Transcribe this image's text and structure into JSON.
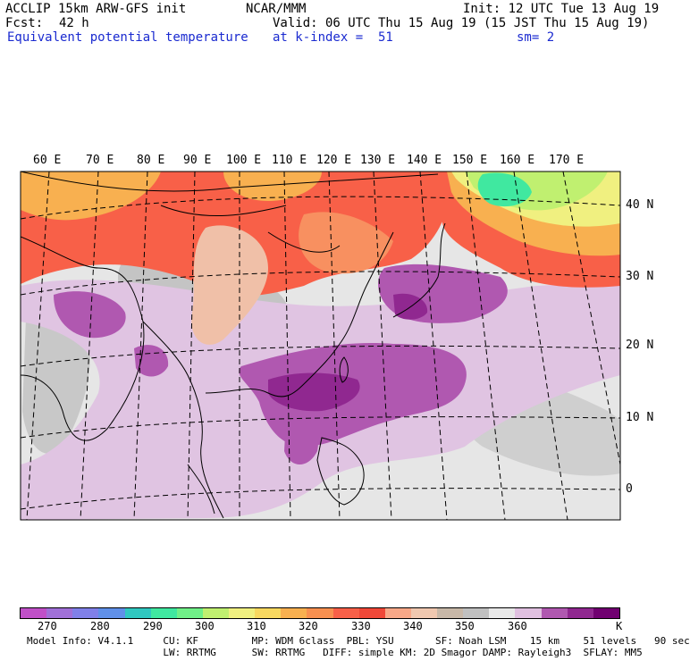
{
  "header": {
    "model_title": "ACCLIP 15km ARW-GFS init",
    "org": "NCAR/MMM",
    "init_time": "Init: 12 UTC Tue 13 Aug 19",
    "fcst_label": "Fcst:",
    "fcst_value": "42 h",
    "valid_time": "Valid: 06 UTC Thu 15 Aug 19 (15 JST Thu 15 Aug 19)",
    "field_name": "Equivalent potential temperature",
    "level": "at k-index =  51",
    "smoothing": "sm= 2"
  },
  "map": {
    "lon_labels": [
      "60 E",
      "70 E",
      "80 E",
      "90 E",
      "100 E",
      "110 E",
      "120 E",
      "130 E",
      "140 E",
      "150 E",
      "160 E",
      "170 E"
    ],
    "lat_labels": [
      "40 N",
      "30 N",
      "20 N",
      "10 N",
      "0"
    ]
  },
  "colorbar": {
    "colors": [
      "#c050c8",
      "#a070d8",
      "#8080e8",
      "#6090e8",
      "#30c8c0",
      "#40e8a0",
      "#70f088",
      "#c0f070",
      "#f0f080",
      "#f8d860",
      "#f8b050",
      "#f89050",
      "#f86048",
      "#f04838",
      "#f8a888",
      "#f0c8b0",
      "#c8b8a8",
      "#c0c0c0",
      "#e8e8e8",
      "#e0c0e0",
      "#b058b0",
      "#902890",
      "#700070"
    ],
    "labels": [
      "270",
      "280",
      "290",
      "300",
      "310",
      "320",
      "330",
      "340",
      "350",
      "360"
    ],
    "unit": "K"
  },
  "footer": {
    "line1": "Model Info: V4.1.1     CU: KF         MP: WDM 6class  PBL: YSU       SF: Noah LSM    15 km    51 levels   90 sec",
    "line2": "                       LW: RRTMG      SW: RRTMG   DIFF: simple KM: 2D Smagor DAMP: Rayleigh3  SFLAY: MM5"
  }
}
